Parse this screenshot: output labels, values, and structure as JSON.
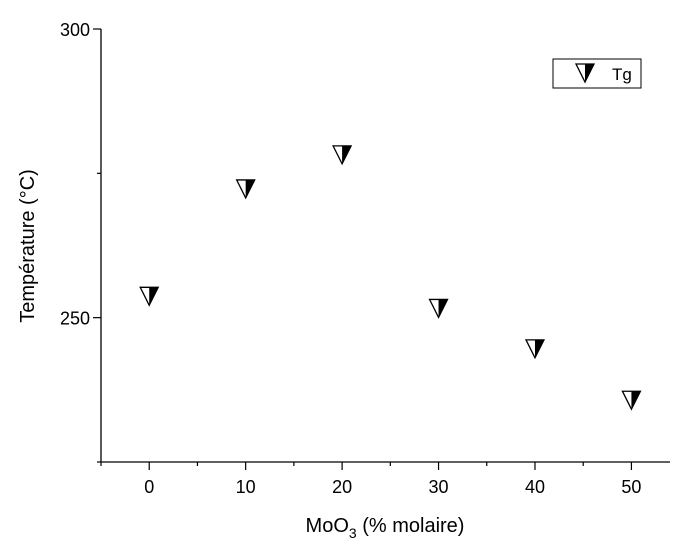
{
  "chart_data": {
    "type": "scatter",
    "title": "",
    "xlabel": "MoO",
    "xlabel_subscript": "3",
    "xlabel_suffix": " (% molaire)",
    "ylabel": "Température (°C)",
    "xlim": [
      -5,
      54
    ],
    "ylim": [
      225,
      300
    ],
    "x_ticks": [
      0,
      10,
      20,
      30,
      40,
      50
    ],
    "x_tick_labels": [
      "0",
      "10",
      "20",
      "30",
      "40",
      "50"
    ],
    "y_ticks": [
      250,
      300
    ],
    "y_tick_labels": [
      "250",
      "300"
    ],
    "grid": false,
    "legend_position": "top-right",
    "series": [
      {
        "name": "Tg",
        "marker": "half-filled-down-triangle",
        "x": [
          0,
          10,
          20,
          30,
          40,
          50
        ],
        "y": [
          253.7,
          272.3,
          278.2,
          251.6,
          244.6,
          235.7
        ]
      }
    ]
  }
}
